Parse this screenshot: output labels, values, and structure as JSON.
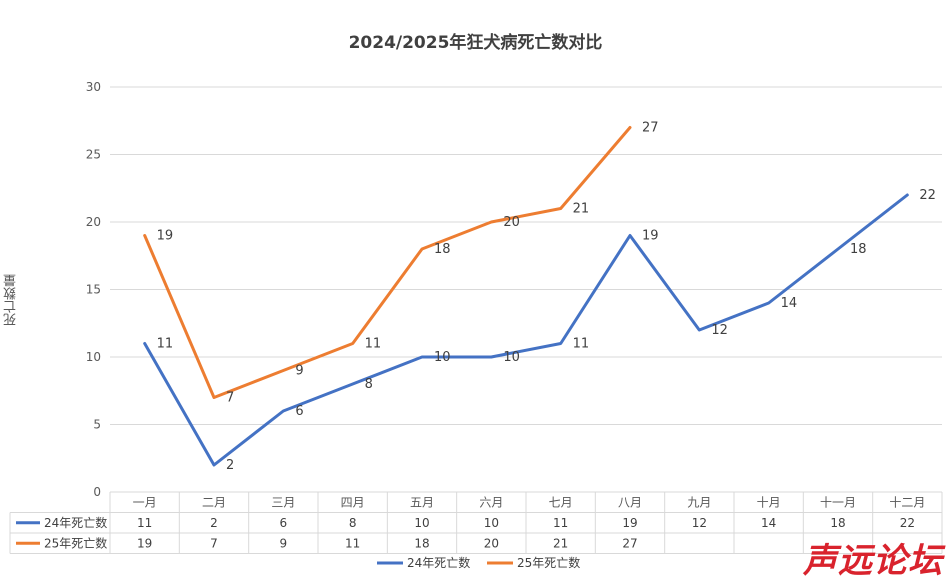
{
  "chart_data": {
    "type": "line",
    "title": "2024/2025年狂犬病死亡数对比",
    "ylabel": "死亡数量",
    "xlabel": "",
    "ylim": [
      0,
      30
    ],
    "yticks": [
      0,
      5,
      10,
      15,
      20,
      25,
      30
    ],
    "grid": true,
    "legend_position": "bottom",
    "categories": [
      "一月",
      "二月",
      "三月",
      "四月",
      "五月",
      "六月",
      "七月",
      "八月",
      "九月",
      "十月",
      "十一月",
      "十二月"
    ],
    "series": [
      {
        "name": "24年死亡数",
        "color": "#4472c4",
        "values": [
          11,
          2,
          6,
          8,
          10,
          10,
          11,
          19,
          12,
          14,
          18,
          22
        ]
      },
      {
        "name": "25年死亡数",
        "color": "#ed7d31",
        "values": [
          19,
          7,
          9,
          11,
          18,
          20,
          21,
          27,
          null,
          null,
          null,
          null
        ]
      }
    ]
  },
  "watermark": "声远论坛"
}
